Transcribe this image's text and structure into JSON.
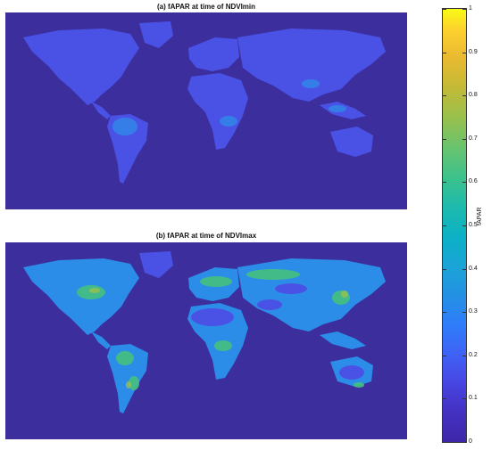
{
  "panels": [
    {
      "title": "(a) fAPAR at time of NDVImin",
      "variant": "min"
    },
    {
      "title": "(b) fAPAR at time of NDVImax",
      "variant": "max"
    }
  ],
  "colorbar": {
    "label": "fAPAR",
    "ticks": [
      "0",
      "0.1",
      "0.2",
      "0.3",
      "0.4",
      "0.5",
      "0.6",
      "0.7",
      "0.8",
      "0.9",
      "1"
    ],
    "range": [
      0,
      1
    ],
    "colormap": "parula"
  },
  "colors": {
    "ocean": "#3d2e9e",
    "land_low": "#4a52e6",
    "land_mid": "#2c8de8",
    "land_high": "#45c07f"
  }
}
